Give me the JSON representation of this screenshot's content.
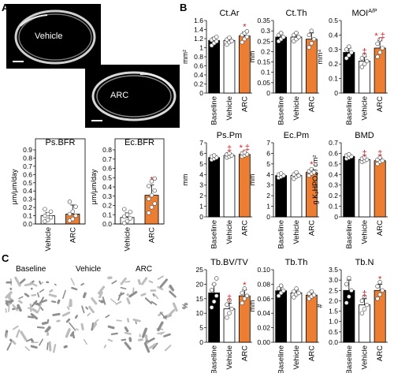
{
  "panels": {
    "A": "A",
    "B": "B",
    "C": "C"
  },
  "micro": {
    "top_label": "Vehicle",
    "bottom_label": "ARC"
  },
  "render_labels": [
    "Baseline",
    "Vehicle",
    "ARC"
  ],
  "colors": {
    "baseline": "#000000",
    "vehicle": "#ffffff",
    "arc": "#ed7d31",
    "sig": "#e8141e"
  },
  "chart_data": [
    {
      "id": "psbfr",
      "type": "bar",
      "title": "Ps.BFR",
      "ylabel": "μm/μm/day",
      "categories": [
        "Vehicle",
        "ARC"
      ],
      "values": [
        0.1,
        0.12
      ],
      "errors": [
        0.04,
        0.11
      ],
      "ylim": [
        0,
        0.9
      ],
      "yticks": [
        "0.0",
        "0.1",
        "0.2",
        "0.3",
        "0.4",
        "0.5",
        "0.6",
        "0.7",
        "0.8",
        "0.9"
      ],
      "ytick_values": [
        0,
        0.1,
        0.2,
        0.3,
        0.4,
        0.5,
        0.6,
        0.7,
        0.8,
        0.9
      ],
      "fills": [
        "#ffffff",
        "#ed7d31"
      ],
      "sig": [
        "",
        ""
      ],
      "points": [
        [
          0.03,
          0.05,
          0.08,
          0.1,
          0.12,
          0.15,
          0.18
        ],
        [
          0.04,
          0.06,
          0.1,
          0.12,
          0.15,
          0.21,
          0.27
        ]
      ]
    },
    {
      "id": "ecbfr",
      "type": "bar",
      "title": "Ec.BFR",
      "ylabel": "μm/μm/day",
      "categories": [
        "Vehicle",
        "ARC"
      ],
      "values": [
        0.07,
        0.31
      ],
      "errors": [
        0.05,
        0.11
      ],
      "ylim": [
        0,
        0.8
      ],
      "yticks": [
        "0.0",
        "0.1",
        "0.2",
        "0.3",
        "0.4",
        "0.5",
        "0.6",
        "0.7",
        "0.8"
      ],
      "ytick_values": [
        0,
        0.1,
        0.2,
        0.3,
        0.4,
        0.5,
        0.6,
        0.7,
        0.8
      ],
      "fills": [
        "#ffffff",
        "#ed7d31"
      ],
      "sig": [
        "",
        "*"
      ],
      "points": [
        [
          0.01,
          0.03,
          0.06,
          0.08,
          0.1,
          0.13,
          0.16
        ],
        [
          0.12,
          0.18,
          0.22,
          0.27,
          0.31,
          0.36,
          0.41,
          0.46,
          0.49
        ]
      ]
    },
    {
      "id": "ctar",
      "type": "bar",
      "title": "Ct.Ar",
      "ylabel": "mm²",
      "categories": [
        "Baseline",
        "Vehicle",
        "ARC"
      ],
      "values": [
        1.16,
        1.16,
        1.26
      ],
      "errors": [
        0.07,
        0.06,
        0.09
      ],
      "ylim": [
        0,
        1.6
      ],
      "yticks": [
        "0",
        "0.2",
        "0.4",
        "0.6",
        "0.8",
        "1",
        "1.2",
        "1.4",
        "1.6"
      ],
      "ytick_values": [
        0,
        0.2,
        0.4,
        0.6,
        0.8,
        1,
        1.2,
        1.4,
        1.6
      ],
      "fills": [
        "#000000",
        "#ffffff",
        "#ed7d31"
      ],
      "sig": [
        "",
        "",
        "*"
      ],
      "points": [
        [
          1.05,
          1.1,
          1.14,
          1.17,
          1.2,
          1.24
        ],
        [
          1.07,
          1.12,
          1.15,
          1.18,
          1.22
        ],
        [
          1.12,
          1.19,
          1.24,
          1.28,
          1.32,
          1.36
        ]
      ]
    },
    {
      "id": "ctth",
      "type": "bar",
      "title": "Ct.Th",
      "ylabel": "mm",
      "categories": [
        "Baseline",
        "Vehicle",
        "ARC"
      ],
      "values": [
        0.27,
        0.27,
        0.26
      ],
      "errors": [
        0.02,
        0.02,
        0.03
      ],
      "ylim": [
        0,
        0.35
      ],
      "yticks": [
        "0",
        "0.05",
        "0.1",
        "0.15",
        "0.2",
        "0.25",
        "0.3",
        "0.35"
      ],
      "ytick_values": [
        0,
        0.05,
        0.1,
        0.15,
        0.2,
        0.25,
        0.3,
        0.35
      ],
      "fills": [
        "#000000",
        "#ffffff",
        "#ed7d31"
      ],
      "sig": [
        "",
        "",
        ""
      ],
      "points": [
        [
          0.25,
          0.26,
          0.27,
          0.28,
          0.29
        ],
        [
          0.25,
          0.26,
          0.27,
          0.28,
          0.29
        ],
        [
          0.22,
          0.24,
          0.26,
          0.28,
          0.3
        ]
      ]
    },
    {
      "id": "moi",
      "type": "bar",
      "title": "MOI^A/P",
      "ylabel": "mm⁴",
      "categories": [
        "Baseline",
        "Vehicle",
        "ARC"
      ],
      "values": [
        0.28,
        0.22,
        0.31
      ],
      "errors": [
        0.03,
        0.03,
        0.05
      ],
      "ylim": [
        0,
        0.5
      ],
      "yticks": [
        "0",
        "0.1",
        "0.2",
        "0.3",
        "0.4",
        "0.5"
      ],
      "ytick_values": [
        0,
        0.1,
        0.2,
        0.3,
        0.4,
        0.5
      ],
      "fills": [
        "#000000",
        "#ffffff",
        "#ed7d31"
      ],
      "sig": [
        "",
        "‡",
        "*,‡"
      ],
      "points": [
        [
          0.24,
          0.26,
          0.28,
          0.3,
          0.32
        ],
        [
          0.18,
          0.2,
          0.22,
          0.24,
          0.26
        ],
        [
          0.25,
          0.28,
          0.31,
          0.34,
          0.37
        ]
      ]
    },
    {
      "id": "pspm",
      "type": "bar",
      "title": "Ps.Pm",
      "ylabel": "mm",
      "categories": [
        "Baseline",
        "Vehicle",
        "ARC"
      ],
      "values": [
        5.6,
        5.8,
        5.9
      ],
      "errors": [
        0.15,
        0.15,
        0.15
      ],
      "ylim": [
        0,
        7
      ],
      "yticks": [
        "0",
        "1",
        "2",
        "3",
        "4",
        "5",
        "6",
        "7"
      ],
      "ytick_values": [
        0,
        1,
        2,
        3,
        4,
        5,
        6,
        7
      ],
      "fills": [
        "#000000",
        "#ffffff",
        "#ed7d31"
      ],
      "sig": [
        "",
        "‡",
        "*,‡"
      ],
      "points": [
        [
          5.4,
          5.5,
          5.6,
          5.7,
          5.8
        ],
        [
          5.6,
          5.7,
          5.8,
          5.9,
          6.0
        ],
        [
          5.7,
          5.8,
          5.9,
          6.0,
          6.1
        ]
      ]
    },
    {
      "id": "ecpm",
      "type": "bar",
      "title": "Ec.Pm",
      "ylabel": "mm",
      "categories": [
        "Baseline",
        "Vehicle",
        "ARC"
      ],
      "values": [
        3.9,
        3.9,
        4.2
      ],
      "errors": [
        0.15,
        0.2,
        0.25
      ],
      "ylim": [
        0,
        7
      ],
      "yticks": [
        "0",
        "1",
        "2",
        "3",
        "4",
        "5",
        "6",
        "7"
      ],
      "ytick_values": [
        0,
        1,
        2,
        3,
        4,
        5,
        6,
        7
      ],
      "fills": [
        "#000000",
        "#ffffff",
        "#ed7d31"
      ],
      "sig": [
        "",
        "",
        "*"
      ],
      "points": [
        [
          3.7,
          3.8,
          3.9,
          4.0,
          4.1
        ],
        [
          3.6,
          3.8,
          3.9,
          4.0,
          4.2
        ],
        [
          3.9,
          4.1,
          4.2,
          4.3,
          4.5
        ]
      ]
    },
    {
      "id": "bmd",
      "type": "bar",
      "title": "BMD",
      "ylabel": "g K₂HPO₄ / cm²",
      "categories": [
        "Baseline",
        "Vehicle",
        "ARC"
      ],
      "values": [
        0.57,
        0.54,
        0.53
      ],
      "errors": [
        0.02,
        0.01,
        0.02
      ],
      "ylim": [
        0,
        0.7
      ],
      "yticks": [
        "0",
        "0.1",
        "0.2",
        "0.3",
        "0.4",
        "0.5",
        "0.6",
        "0.7"
      ],
      "ytick_values": [
        0,
        0.1,
        0.2,
        0.3,
        0.4,
        0.5,
        0.6,
        0.7
      ],
      "fills": [
        "#000000",
        "#ffffff",
        "#ed7d31"
      ],
      "sig": [
        "",
        "‡",
        "‡"
      ],
      "points": [
        [
          0.55,
          0.56,
          0.57,
          0.58,
          0.59
        ],
        [
          0.52,
          0.53,
          0.54,
          0.55,
          0.56
        ],
        [
          0.5,
          0.52,
          0.53,
          0.54,
          0.56
        ]
      ]
    },
    {
      "id": "tbbvtv",
      "type": "bar",
      "title": "Tb.BV/TV",
      "ylabel": "%",
      "categories": [
        "Baseline",
        "Vehicle",
        "ARC"
      ],
      "values": [
        17.0,
        11.5,
        16.0
      ],
      "errors": [
        3.0,
        2.0,
        2.0
      ],
      "ylim": [
        0,
        25
      ],
      "yticks": [
        "0",
        "5",
        "10",
        "15",
        "20",
        "25"
      ],
      "ytick_values": [
        0,
        5,
        10,
        15,
        20,
        25
      ],
      "fills": [
        "#000000",
        "#ffffff",
        "#ed7d31"
      ],
      "sig": [
        "",
        "‡",
        "*"
      ],
      "points": [
        [
          12,
          14,
          16,
          18,
          20,
          22
        ],
        [
          8.5,
          10,
          11.5,
          13,
          14.5
        ],
        [
          13.5,
          15,
          16,
          17,
          18.5
        ]
      ]
    },
    {
      "id": "tbth",
      "type": "bar",
      "title": "Tb.Th",
      "ylabel": "mm",
      "categories": [
        "Baseline",
        "Vehicle",
        "ARC"
      ],
      "values": [
        0.071,
        0.068,
        0.065
      ],
      "errors": [
        0.005,
        0.004,
        0.004
      ],
      "ylim": [
        0,
        0.1
      ],
      "yticks": [
        "0.00",
        "0.02",
        "0.04",
        "0.06",
        "0.08",
        "0.10"
      ],
      "ytick_values": [
        0,
        0.02,
        0.04,
        0.06,
        0.08,
        0.1
      ],
      "fills": [
        "#000000",
        "#ffffff",
        "#ed7d31"
      ],
      "sig": [
        "",
        "",
        ""
      ],
      "points": [
        [
          0.064,
          0.068,
          0.071,
          0.074,
          0.078
        ],
        [
          0.062,
          0.066,
          0.068,
          0.07,
          0.074
        ],
        [
          0.06,
          0.063,
          0.065,
          0.067,
          0.07
        ]
      ]
    },
    {
      "id": "tbn",
      "type": "bar",
      "title": "Tb.N",
      "ylabel": "#",
      "categories": [
        "Baseline",
        "Vehicle",
        "ARC"
      ],
      "values": [
        2.5,
        1.8,
        2.5
      ],
      "errors": [
        0.5,
        0.3,
        0.3
      ],
      "ylim": [
        0,
        3.5
      ],
      "yticks": [
        "0.0",
        "0.5",
        "1.0",
        "1.5",
        "2.0",
        "2.5",
        "3.0",
        "3.5"
      ],
      "ytick_values": [
        0,
        0.5,
        1,
        1.5,
        2,
        2.5,
        3,
        3.5
      ],
      "fills": [
        "#000000",
        "#ffffff",
        "#ed7d31"
      ],
      "sig": [
        "",
        "‡",
        "*"
      ],
      "points": [
        [
          1.9,
          2.2,
          2.5,
          2.8,
          3.1
        ],
        [
          1.4,
          1.6,
          1.8,
          2.0,
          2.2
        ],
        [
          2.1,
          2.3,
          2.5,
          2.7,
          2.9
        ]
      ]
    }
  ]
}
